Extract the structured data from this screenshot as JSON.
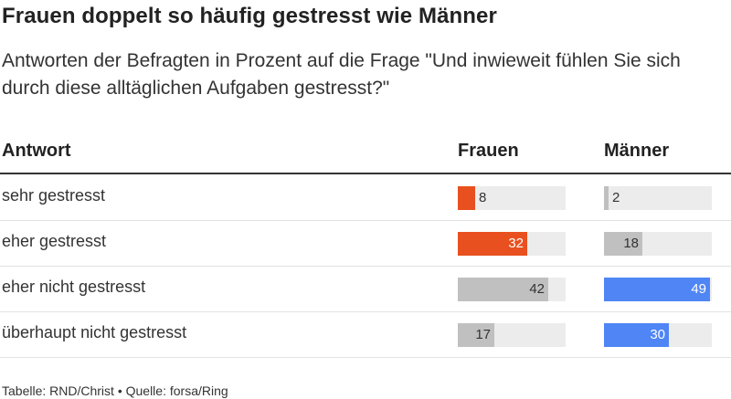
{
  "title": "Frauen doppelt so häufig gestresst wie Männer",
  "subtitle": "Antworten der Befragten in Prozent auf die Frage \"Und inwieweit fühlen Sie sich durch diese alltäglichen Aufgaben gestresst?\"",
  "columns": {
    "answer": "Antwort",
    "women": "Frauen",
    "men": "Männer"
  },
  "footer": "Tabelle: RND/Christ • Quelle: forsa/Ring",
  "colors": {
    "women_highlight": "#e8501f",
    "men_highlight": "#4f85f5",
    "neutral": "#c0c0c0",
    "track": "#ececec"
  },
  "chart_data": {
    "type": "table",
    "categories": [
      "sehr gestresst",
      "eher gestresst",
      "eher nicht gestresst",
      "überhaupt nicht gestresst"
    ],
    "series": [
      {
        "name": "Frauen",
        "values": [
          8,
          32,
          42,
          17
        ],
        "highlight": [
          true,
          true,
          false,
          false
        ]
      },
      {
        "name": "Männer",
        "values": [
          2,
          18,
          49,
          30
        ],
        "highlight": [
          false,
          false,
          true,
          true
        ]
      }
    ],
    "ylim": [
      0,
      50
    ]
  }
}
